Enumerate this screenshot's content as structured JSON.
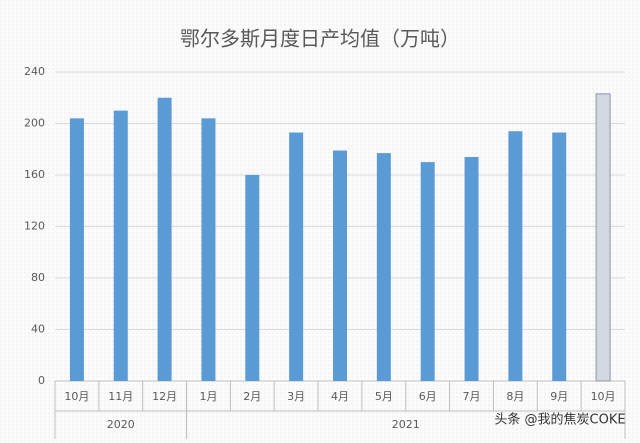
{
  "chart_data": {
    "type": "bar",
    "title": "鄂尔多斯月度日产均值（万吨）",
    "categories": [
      "10月",
      "11月",
      "12月",
      "1月",
      "2月",
      "3月",
      "4月",
      "5月",
      "6月",
      "7月",
      "8月",
      "9月",
      "10月"
    ],
    "groups": [
      {
        "name": "2020",
        "count": 3
      },
      {
        "name": "2021",
        "count": 10
      }
    ],
    "values": [
      204,
      210,
      220,
      204,
      160,
      193,
      179,
      177,
      170,
      174,
      194,
      193,
      223
    ],
    "colors": [
      "#5b9bd5",
      "#5b9bd5",
      "#5b9bd5",
      "#5b9bd5",
      "#5b9bd5",
      "#5b9bd5",
      "#5b9bd5",
      "#5b9bd5",
      "#5b9bd5",
      "#5b9bd5",
      "#5b9bd5",
      "#5b9bd5",
      "#d3d7df"
    ],
    "ylim": [
      0,
      240
    ],
    "yticks": [
      0,
      40,
      80,
      120,
      160,
      200,
      240
    ],
    "grid": true,
    "watermark": "头条 @我的焦炭COKE"
  }
}
